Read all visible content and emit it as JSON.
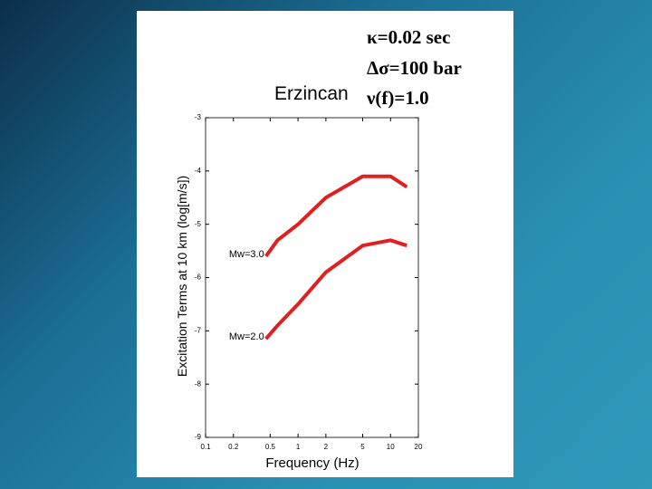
{
  "chart_data": {
    "type": "line",
    "title": "Erzincan",
    "params": [
      "κ=0.02 sec",
      "Δσ=100 bar",
      "ν(f)=1.0"
    ],
    "x_label": "Frequency (Hz)",
    "y_label": "Excitation Terms at 10 km (log[m/s])",
    "xscale": "log",
    "xlim": [
      0.1,
      20
    ],
    "xticks": [
      0.1,
      0.2,
      0.5,
      1,
      2,
      5,
      10,
      20
    ],
    "ylim": [
      -9,
      -3
    ],
    "yticks": [
      -9,
      -8,
      -7,
      -6,
      -5,
      -4,
      -3
    ],
    "x": [
      0.45,
      0.6,
      1,
      2,
      5,
      10,
      15
    ],
    "series": [
      {
        "name": "Mw=3.0",
        "color": "#e02020",
        "values": [
          -5.6,
          -5.3,
          -5.0,
          -4.5,
          -4.1,
          -4.1,
          -4.3
        ]
      },
      {
        "name": "Mw=2.0",
        "color": "#e02020",
        "values": [
          -7.15,
          -6.9,
          -6.5,
          -5.9,
          -5.4,
          -5.3,
          -5.4
        ]
      }
    ]
  }
}
